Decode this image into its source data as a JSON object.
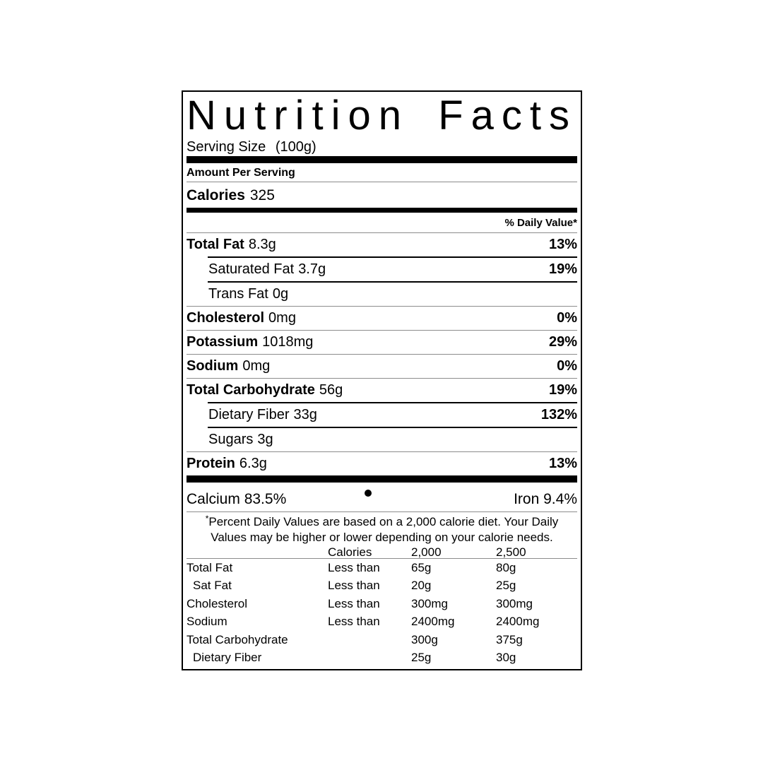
{
  "colors": {
    "background": "#ffffff",
    "text": "#000000",
    "hairline": "#8c8c8c"
  },
  "label": {
    "title": "Nutrition Facts",
    "title_words": [
      "Nutrition",
      "Facts"
    ],
    "serving_size_label": "Serving Size",
    "serving_size_value": "(100g)",
    "amount_per_serving": "Amount Per Serving",
    "calories_label": "Calories",
    "calories_value": "325",
    "daily_value_header": "% Daily Value*",
    "nutrients": [
      {
        "name": "Total Fat",
        "amount": "8.3g",
        "dv": "13%"
      },
      {
        "name": "Saturated Fat",
        "amount": "3.7g",
        "dv": "19%"
      },
      {
        "name": "Trans Fat",
        "amount": "0g",
        "dv": ""
      },
      {
        "name": "Cholesterol",
        "amount": "0mg",
        "dv": "0%"
      },
      {
        "name": "Potassium",
        "amount": "1018mg",
        "dv": "29%"
      },
      {
        "name": "Sodium",
        "amount": "0mg",
        "dv": "0%"
      },
      {
        "name": "Total Carbohydrate",
        "amount": "56g",
        "dv": "19%"
      },
      {
        "name": "Dietary Fiber",
        "amount": "33g",
        "dv": "132%"
      },
      {
        "name": "Sugars",
        "amount": "3g",
        "dv": ""
      },
      {
        "name": "Protein",
        "amount": "6.3g",
        "dv": "13%"
      }
    ],
    "minerals": {
      "calcium_label": "Calcium",
      "calcium_value": "83.5%",
      "iron_label": "Iron",
      "iron_value": "9.4%",
      "bullet": "•"
    },
    "footnote_asterisk": "*",
    "footnote": "Percent Daily Values are based on a 2,000 calorie diet. Your Daily Values may be higher or lower depending on your calorie needs.",
    "dv_table": {
      "header": [
        "",
        "Calories",
        "2,000",
        "2,500"
      ],
      "rows": [
        [
          "Total Fat",
          "Less than",
          "65g",
          "80g"
        ],
        [
          "Sat Fat",
          "Less than",
          "20g",
          "25g"
        ],
        [
          "Cholesterol",
          "Less than",
          "300mg",
          "300mg"
        ],
        [
          "Sodium",
          "Less than",
          "2400mg",
          "2400mg"
        ],
        [
          "Total Carbohydrate",
          "",
          "300g",
          "375g"
        ],
        [
          "Dietary Fiber",
          "",
          "25g",
          "30g"
        ]
      ]
    }
  }
}
